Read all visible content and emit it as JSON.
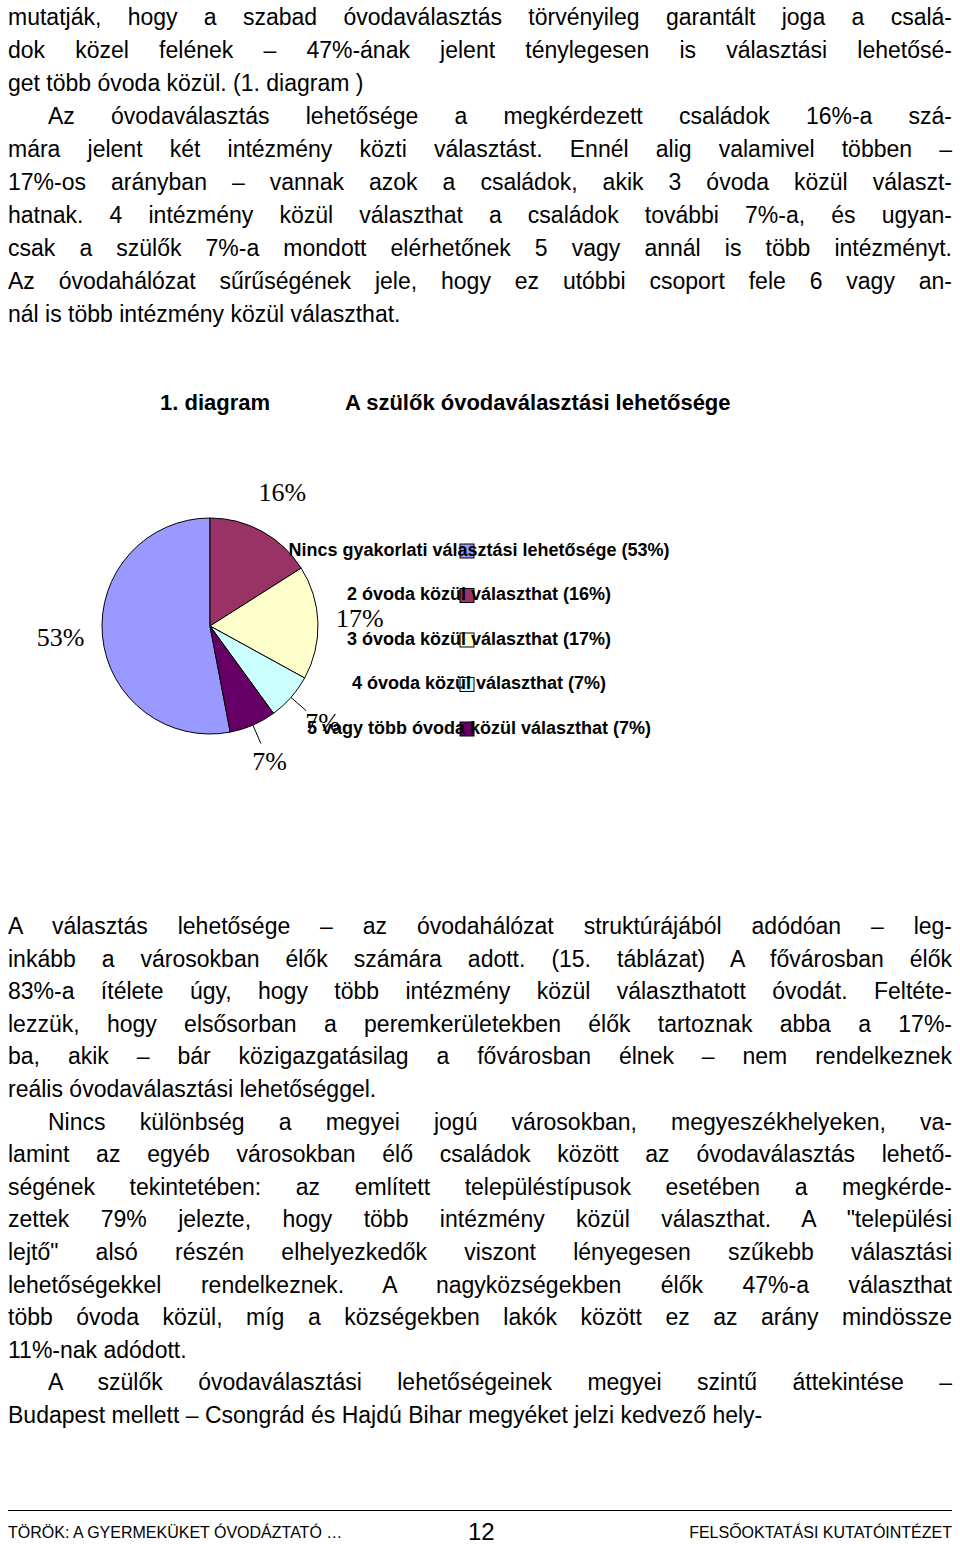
{
  "document": {
    "paragraphs_before": [
      [
        "mutatják, hogy a szabad óvodaválasztás törvényileg garantált joga a csalá-",
        "dok közel felének – 47%-ának jelent ténylegesen is választási lehetősé-",
        "get több óvoda közül. (1. diagram )"
      ],
      [
        "Az óvodaválasztás lehetősége a megkérdezett családok 16%-a szá-",
        "mára jelent két intézmény közti választást. Ennél alig valamivel többen –",
        "17%-os arányban – vannak azok a családok, akik 3 óvoda közül választ-",
        "hatnak. 4 intézmény közül választhat a családok további 7%-a, és ugyan-",
        "csak a szülők 7%-a mondott elérhetőnek 5 vagy annál is több intézményt.",
        "Az óvodahálózat sűrűségének jele, hogy ez utóbbi csoport fele 6 vagy an-",
        "nál is több intézmény közül választhat."
      ]
    ],
    "paragraphs_after": [
      [
        "A választás lehetősége – az óvodahálózat struktúrájából adódóan – leg-",
        "inkább a városokban élők számára adott. (15. táblázat) A fővárosban élők",
        "83%-a ítélete úgy, hogy több intézmény közül választhatott óvodát. Feltéte-",
        "lezzük, hogy elsősorban a peremkerületekben élők tartoznak abba a 17%-",
        "ba, akik – bár közigazgatásilag a fővárosban élnek – nem rendelkeznek",
        "reális óvodaválasztási lehetőséggel."
      ],
      [
        "Nincs különbség a megyei jogú városokban, megyeszékhelyeken, va-",
        "lamint az egyéb városokban élő családok között az óvodaválasztás lehető-",
        "ségének tekintetében: az említett településtípusok esetében a megkérde-",
        "zettek 79% jelezte, hogy több intézmény közül választhat. A \"települési",
        "lejtő\" alsó részén elhelyezkedők viszont lényegesen szűkebb választási",
        "lehetőségekkel rendelkeznek. A nagyközségekben élők 47%-a választhat",
        "több óvoda közül, míg a községekben lakók között ez az arány mindössze",
        "11%-nak adódott."
      ],
      [
        "A szülők óvodaválasztási lehetőségeinek megyei szintű áttekintése –",
        "Budapest mellett – Csongrád és Hajdú Bihar megyéket jelzi kedvező hely-"
      ]
    ],
    "footer": {
      "left": "TÖRÖK: A GYERMEKÜKET ÓVODÁZTATÓ …",
      "page": "12",
      "right": "FELSŐOKTATÁSI KUTATÓINTÉZET"
    }
  },
  "chart_data": {
    "type": "pie",
    "label": "1. diagram",
    "title": "A szülők óvodaválasztási lehetősége",
    "categories": [
      "Nincs gyakorlati választási lehetősége (53%)",
      "2 óvoda közül választhat (16%)",
      "3 óvoda közül választhat (17%)",
      "4 óvoda közül választhat (7%)",
      "5 vagy több óvoda közül választhat (7%)"
    ],
    "values": [
      53,
      16,
      17,
      7,
      7
    ],
    "value_labels": [
      "53%",
      "16%",
      "17%",
      "7%",
      "7%"
    ],
    "colors": [
      "#9999ff",
      "#993366",
      "#ffffcc",
      "#ccffff",
      "#660066"
    ],
    "legend": "right",
    "data_labels": true
  }
}
